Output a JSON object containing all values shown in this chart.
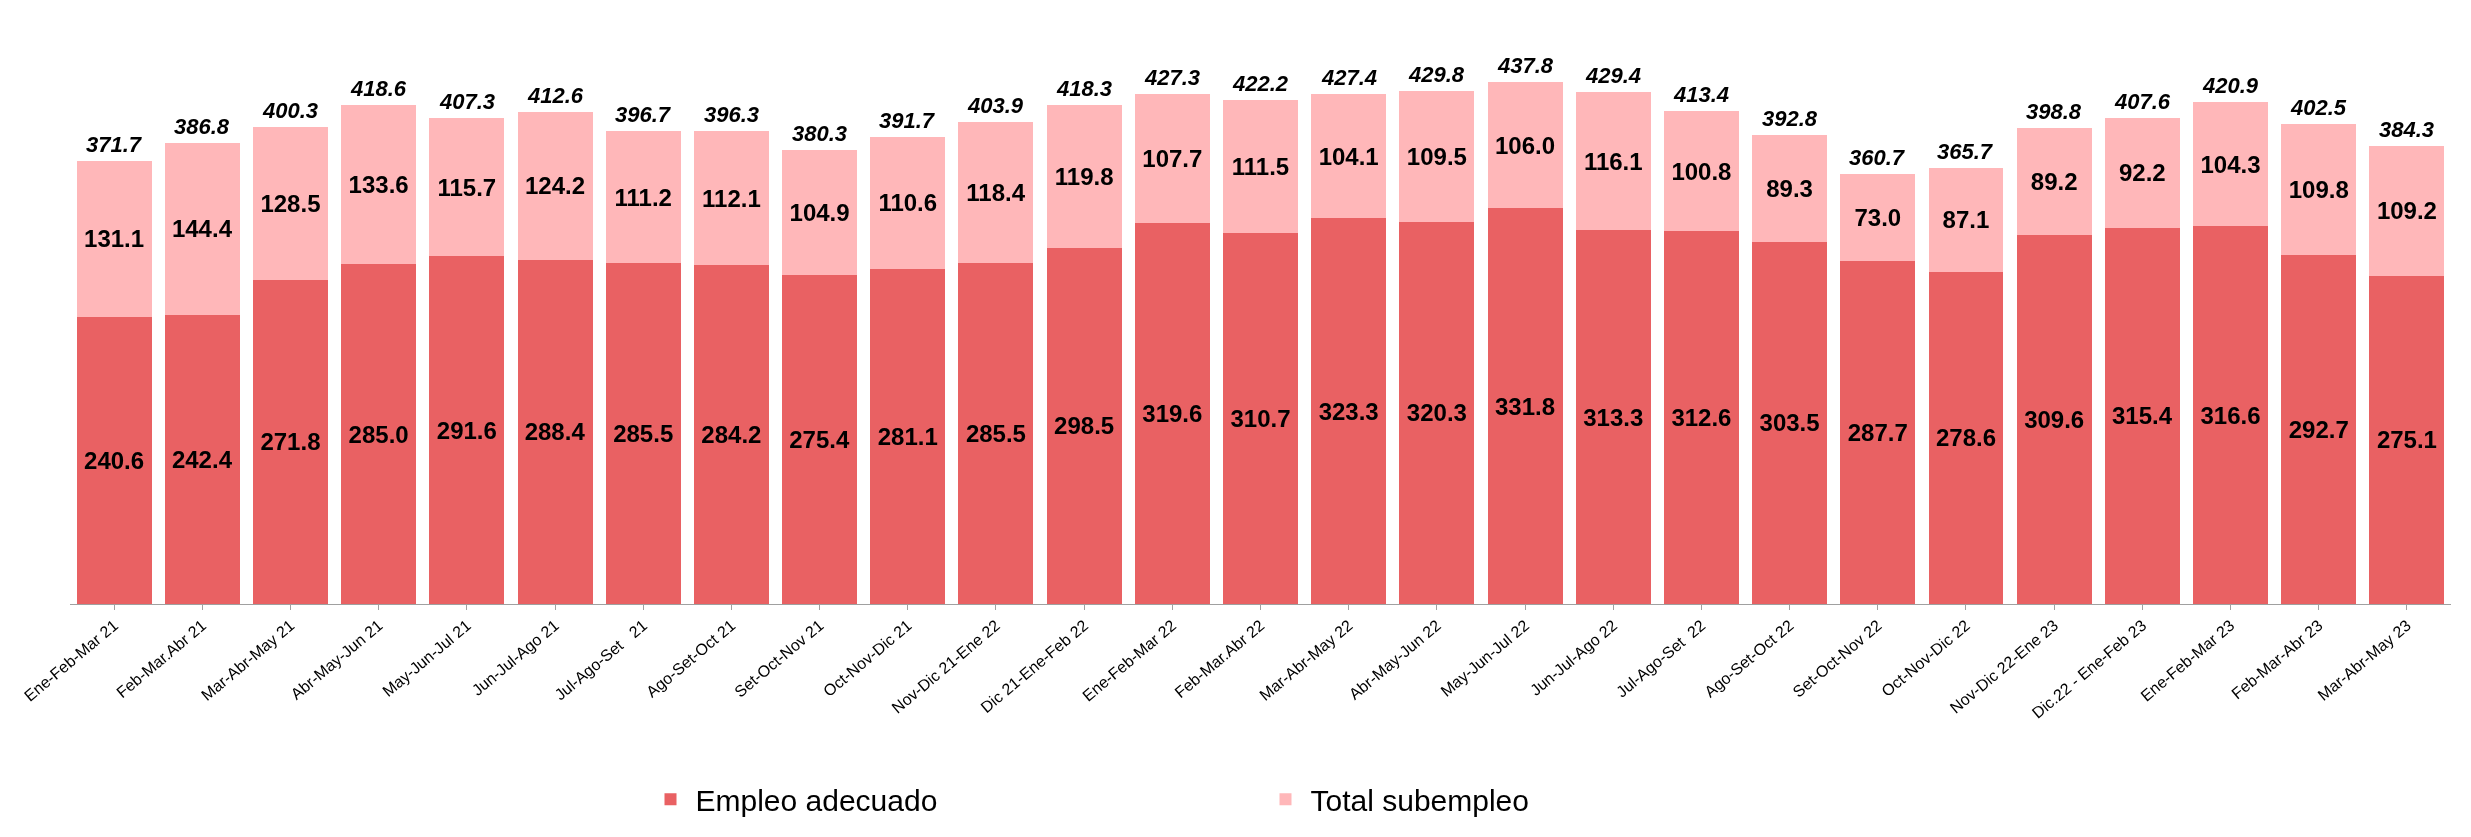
{
  "chart_data": {
    "type": "bar",
    "stacked": true,
    "legend": "bottom",
    "categories": [
      "Ene-Feb-Mar 21",
      "Feb-Mar.Abr 21",
      "Mar-Abr-May 21",
      "Abr-May-Jun 21",
      "May-Jun-Jul 21",
      "Jun-Jul-Ago 21",
      "Jul-Ago-Set   21",
      "Ago-Set-Oct 21",
      "Set-Oct-Nov 21",
      "Oct-Nov-Dic 21",
      "Nov-Dic 21-Ene 22",
      "Dic 21-Ene-Feb 22",
      "Ene-Feb-Mar 22",
      "Feb-Mar.Abr 22",
      "Mar-Abr-May 22",
      "Abr-May-Jun 22",
      "May-Jun-Jul 22",
      "Jun-Jul-Ago 22",
      "Jul-Ago-Set  22",
      "Ago-Set-Oct 22",
      "Set-Oct-Nov 22",
      "Oct-Nov-Dic 22",
      "Nov-Dic 22-Ene 23",
      "Dic.22 - Ene-Feb 23",
      "Ene-Feb-Mar 23",
      "Feb-Mar-Abr 23",
      "Mar-Abr-May 23"
    ],
    "series": [
      {
        "name": "Empleo adecuado",
        "color": "#e96163",
        "values": [
          240.6,
          242.4,
          271.8,
          285.0,
          291.6,
          288.4,
          285.5,
          284.2,
          275.4,
          281.1,
          285.5,
          298.5,
          319.6,
          310.7,
          323.3,
          320.3,
          331.8,
          313.3,
          312.6,
          303.5,
          287.7,
          278.6,
          309.6,
          315.4,
          316.6,
          292.7,
          275.1
        ],
        "value_labels": [
          "240.6",
          "242.4",
          "271.8",
          "285.0",
          "291.6",
          "288.4",
          "285.5",
          "284.2",
          "275.4",
          "281.1",
          "285.5",
          "298.5",
          "319.6",
          "310.7",
          "323.3",
          "320.3",
          "331.8",
          "313.3",
          "312.6",
          "303.5",
          "287.7",
          "278.6",
          "309.6",
          "315.4",
          "316.6",
          "292.7",
          "275.1"
        ]
      },
      {
        "name": "Total subempleo",
        "color": "#ffb7b9",
        "values": [
          131.1,
          144.4,
          128.5,
          133.6,
          115.7,
          124.2,
          111.2,
          112.1,
          104.9,
          110.6,
          118.4,
          119.8,
          107.7,
          111.5,
          104.1,
          109.5,
          106.0,
          116.1,
          100.8,
          89.3,
          73.0,
          87.1,
          89.2,
          92.2,
          104.3,
          109.8,
          109.2
        ],
        "value_labels": [
          "131.1",
          "144.4",
          "128.5",
          "133.6",
          "115.7",
          "124.2",
          "111.2",
          "112.1",
          "104.9",
          "110.6",
          "118.4",
          "119.8",
          "107.7",
          "111.5",
          "104.1",
          "109.5",
          "106.0",
          "116.1",
          "100.8",
          "89.3",
          "73.0",
          "87.1",
          "89.2",
          "92.2",
          "104.3",
          "109.8",
          "109.2"
        ]
      }
    ],
    "totals": [
      "371.7",
      "386.8",
      "400.3",
      "418.6",
      "407.3",
      "412.6",
      "396.7",
      "396.3",
      "380.3",
      "391.7",
      "403.9",
      "418.3",
      "427.3",
      "422.2",
      "427.4",
      "429.8",
      "437.8",
      "429.4",
      "413.4",
      "392.8",
      "360.7",
      "365.7",
      "398.8",
      "407.6",
      "420.9",
      "402.5",
      "384.3"
    ]
  }
}
